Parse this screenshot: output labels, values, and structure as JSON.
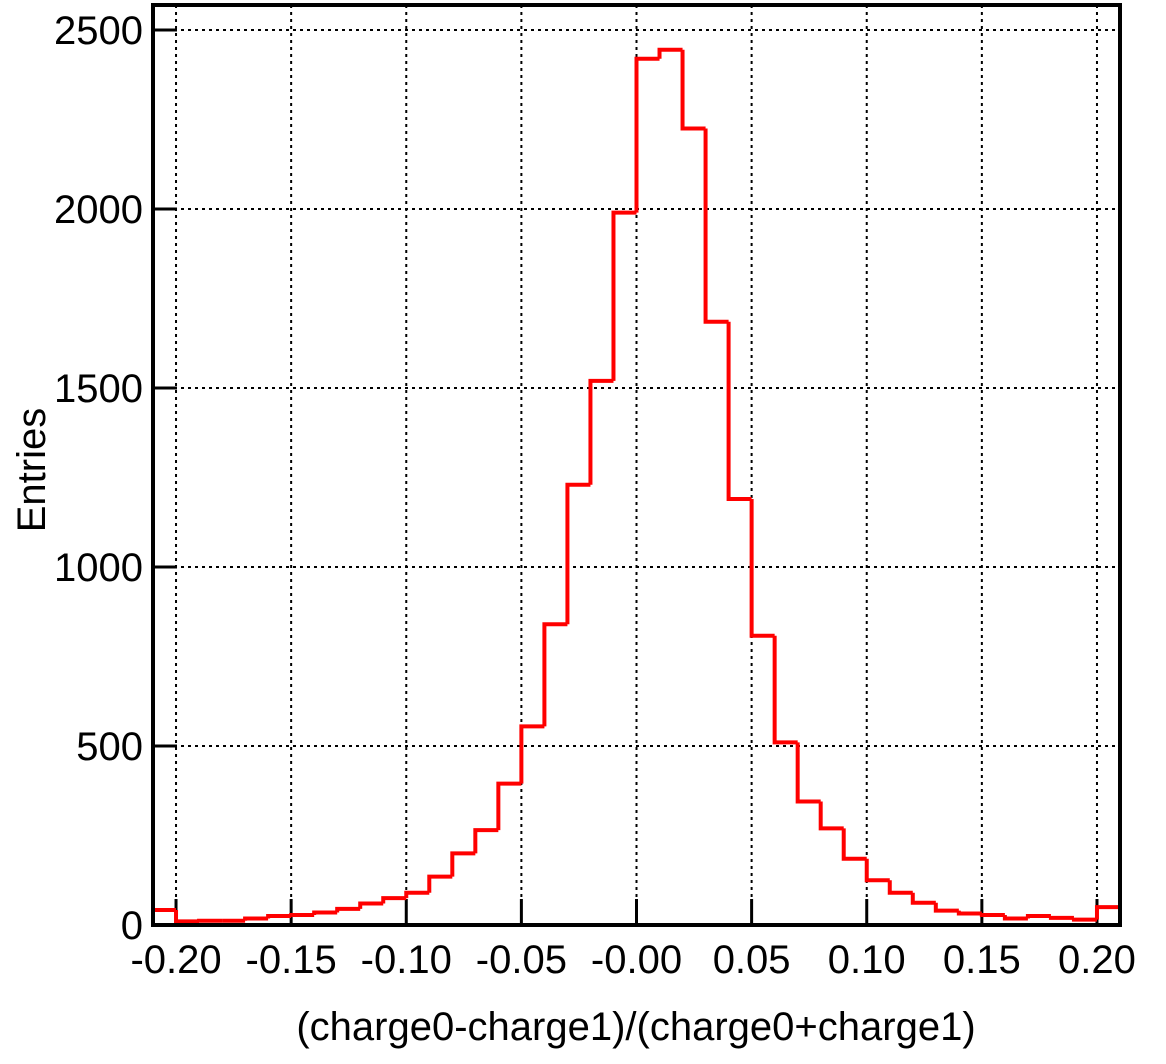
{
  "chart_data": {
    "type": "histogram",
    "xlabel": "(charge0-charge1)/(charge0+charge1)",
    "ylabel": "Entries",
    "bins": [
      -0.21,
      -0.2,
      -0.19,
      -0.18,
      -0.17,
      -0.16,
      -0.15,
      -0.14,
      -0.13,
      -0.12,
      -0.11,
      -0.1,
      -0.09,
      -0.08,
      -0.07,
      -0.06,
      -0.05,
      -0.04,
      -0.03,
      -0.02,
      -0.01,
      0,
      0.01,
      0.02,
      0.03,
      0.04,
      0.05,
      0.06,
      0.07,
      0.08,
      0.09,
      0.1,
      0.11,
      0.12,
      0.13,
      0.14,
      0.15,
      0.16,
      0.17,
      0.18,
      0.19,
      0.2,
      0.21
    ],
    "counts": [
      42,
      10,
      12,
      12,
      18,
      25,
      28,
      35,
      45,
      60,
      75,
      90,
      135,
      200,
      265,
      395,
      555,
      840,
      1230,
      1520,
      1990,
      2420,
      2445,
      2225,
      1685,
      1190,
      808,
      510,
      345,
      270,
      185,
      125,
      90,
      62,
      40,
      32,
      28,
      18,
      25,
      20,
      15,
      50
    ],
    "color": "#ff0000",
    "xlim": [
      -0.21,
      0.21
    ],
    "ylim": [
      0,
      2570
    ],
    "xticks": [
      {
        "value": -0.2,
        "label": "-0.20"
      },
      {
        "value": -0.15,
        "label": "-0.15"
      },
      {
        "value": -0.1,
        "label": "-0.10"
      },
      {
        "value": -0.05,
        "label": "-0.05"
      },
      {
        "value": 0,
        "label": "-0.00"
      },
      {
        "value": 0.05,
        "label": "0.05"
      },
      {
        "value": 0.1,
        "label": "0.10"
      },
      {
        "value": 0.15,
        "label": "0.15"
      },
      {
        "value": 0.2,
        "label": "0.20"
      }
    ],
    "yticks": [
      0,
      500,
      1000,
      1500,
      2000,
      2500
    ],
    "grid": true
  }
}
